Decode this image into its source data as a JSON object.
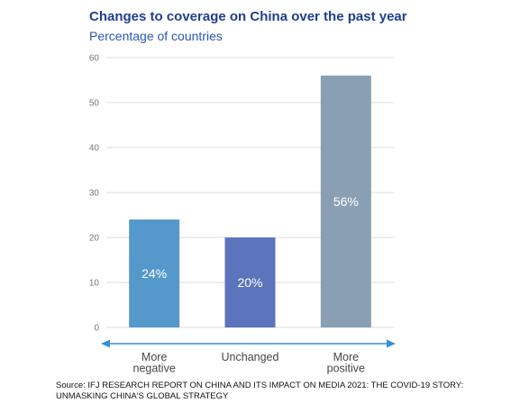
{
  "chart_data": {
    "type": "bar",
    "title": "Changes to coverage on China over the past year",
    "subtitle": "Percentage of countries",
    "categories": [
      [
        "More",
        "negative"
      ],
      [
        "Unchanged"
      ],
      [
        "More",
        "positive"
      ]
    ],
    "values": [
      24,
      20,
      56
    ],
    "data_labels": [
      "24%",
      "20%",
      "56%"
    ],
    "colors": [
      "#5599cc",
      "#5b74bc",
      "#8a9fb3"
    ],
    "ylim": [
      0,
      60
    ],
    "yticks": [
      0,
      10,
      20,
      30,
      40,
      50,
      60
    ],
    "grid": true,
    "axis_color": "#3a8fd4"
  },
  "source": "Source: IFJ RESEARCH REPORT ON CHINA AND ITS IMPACT ON MEDIA 2021: THE COVID-19 STORY: UNMASKING CHINA'S GLOBAL STRATEGY"
}
